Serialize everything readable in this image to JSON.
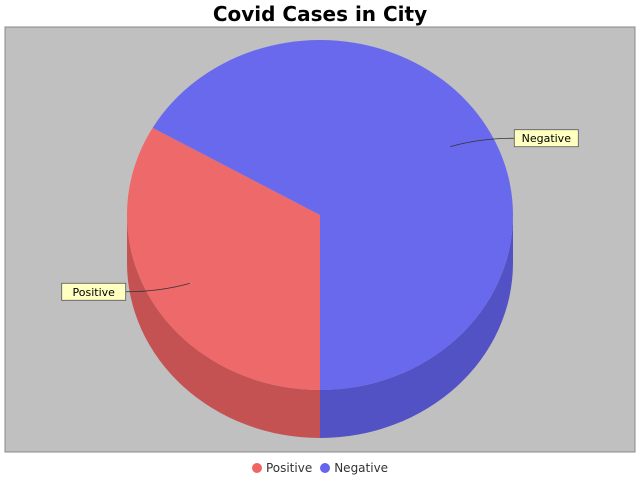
{
  "chart_data": {
    "type": "pie",
    "title": "Covid Cases in City",
    "style": "3d",
    "categories": [
      "Positive",
      "Negative"
    ],
    "values": [
      33.3,
      66.7
    ],
    "unit": "percent",
    "colors": [
      "#f06464",
      "#6464f0"
    ],
    "plot_background": "#c0c0c0",
    "label_background": "#ffffc0",
    "legend_position": "bottom"
  }
}
